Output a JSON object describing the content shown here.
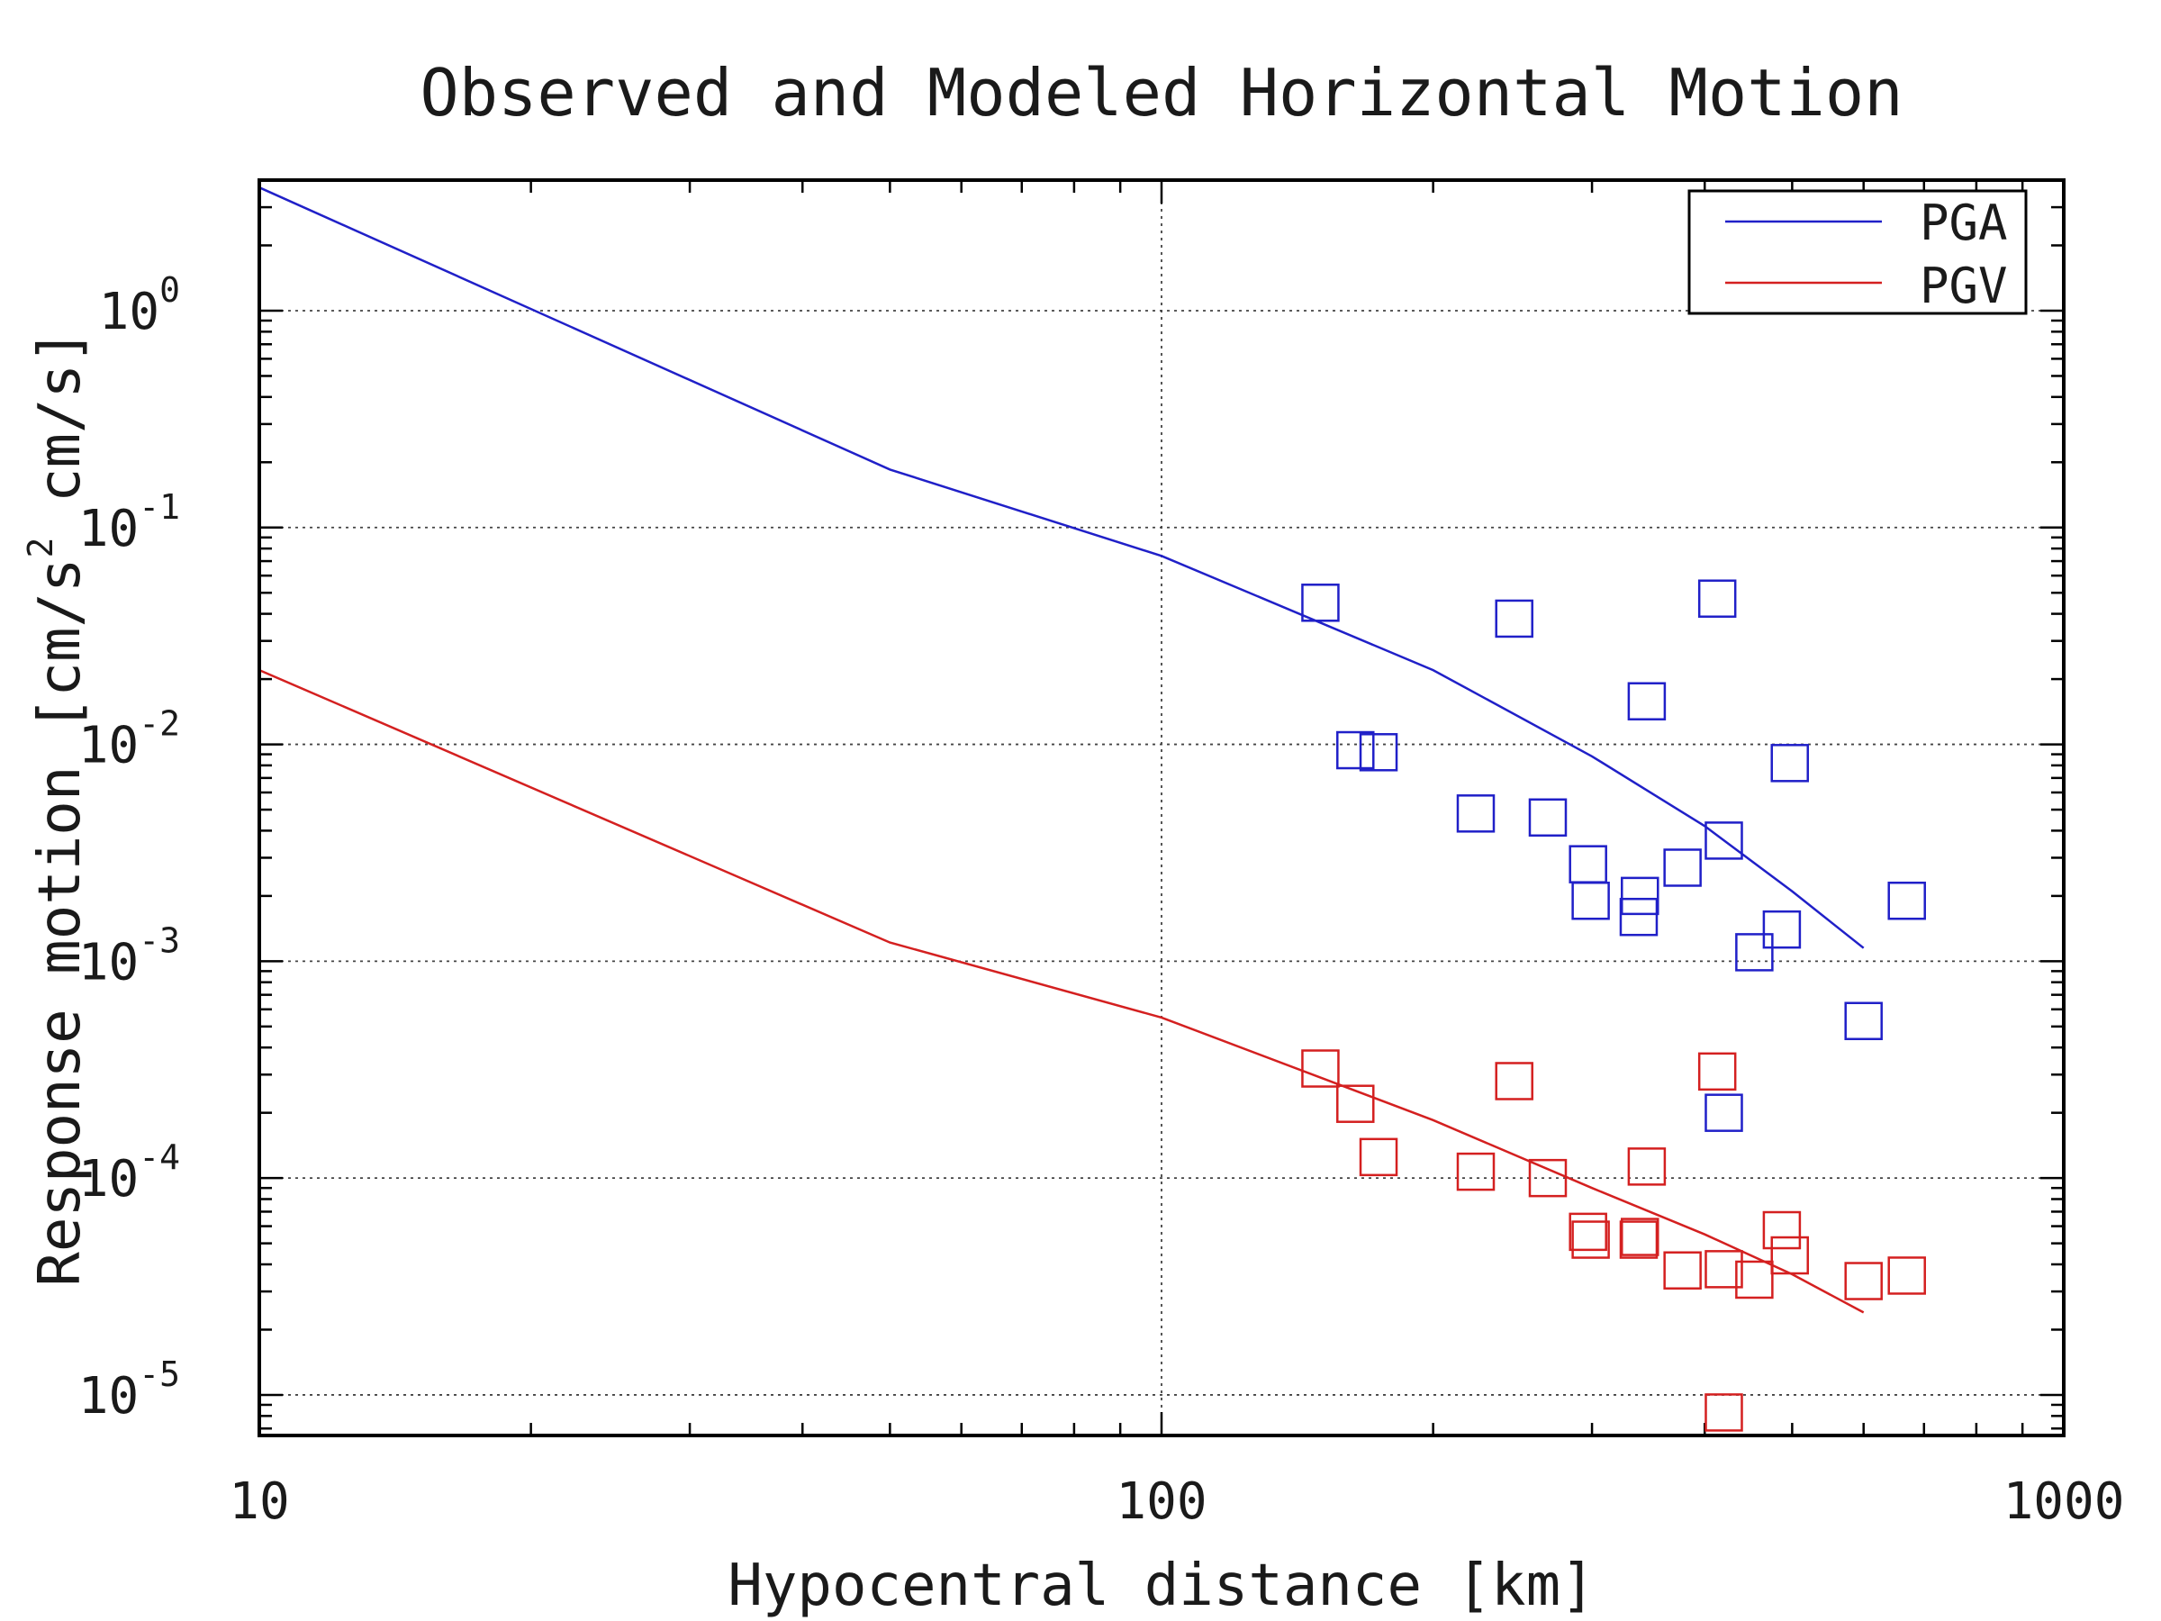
{
  "chart_data": {
    "type": "scatter",
    "title": "Observed and Modeled Horizontal Motion",
    "xlabel": "Hypocentral distance [km]",
    "ylabel_parts": {
      "before": "Response motion [cm/s",
      "sup": "2",
      "after": "  cm/s]"
    },
    "x_scale": "log",
    "y_scale": "log",
    "xlim": [
      10,
      1000
    ],
    "ylim": [
      6.5e-06,
      4
    ],
    "grid": true,
    "legend_position": "top-right",
    "x_ticks": [
      {
        "value": 10,
        "label": "10"
      },
      {
        "value": 100,
        "label": "100"
      },
      {
        "value": 1000,
        "label": "1000"
      }
    ],
    "y_ticks": [
      {
        "value": 1,
        "base": "10",
        "exp": "0"
      },
      {
        "value": 0.1,
        "base": "10",
        "exp": "-1"
      },
      {
        "value": 0.01,
        "base": "10",
        "exp": "-2"
      },
      {
        "value": 0.001,
        "base": "10",
        "exp": "-3"
      },
      {
        "value": 0.0001,
        "base": "10",
        "exp": "-4"
      },
      {
        "value": 1e-05,
        "base": "10",
        "exp": "-5"
      }
    ],
    "series": [
      {
        "name": "PGA",
        "color": "#2020c8",
        "model": [
          {
            "x": 10,
            "y": 3.7
          },
          {
            "x": 50,
            "y": 0.185
          },
          {
            "x": 100,
            "y": 0.074
          },
          {
            "x": 200,
            "y": 0.022
          },
          {
            "x": 300,
            "y": 0.0088
          },
          {
            "x": 400,
            "y": 0.0042
          },
          {
            "x": 500,
            "y": 0.0021
          },
          {
            "x": 600,
            "y": 0.00115
          }
        ],
        "observed": [
          {
            "x": 150,
            "y": 0.045
          },
          {
            "x": 164,
            "y": 0.0094
          },
          {
            "x": 174,
            "y": 0.0092
          },
          {
            "x": 223,
            "y": 0.0048
          },
          {
            "x": 246,
            "y": 0.038
          },
          {
            "x": 268,
            "y": 0.0046
          },
          {
            "x": 297,
            "y": 0.0028
          },
          {
            "x": 299,
            "y": 0.0019
          },
          {
            "x": 339,
            "y": 0.002
          },
          {
            "x": 338,
            "y": 0.0016
          },
          {
            "x": 345,
            "y": 0.0158
          },
          {
            "x": 378,
            "y": 0.0027
          },
          {
            "x": 413,
            "y": 0.047
          },
          {
            "x": 420,
            "y": 0.0036
          },
          {
            "x": 420,
            "y": 0.0002
          },
          {
            "x": 454,
            "y": 0.0011
          },
          {
            "x": 487,
            "y": 0.0014
          },
          {
            "x": 497,
            "y": 0.0082
          },
          {
            "x": 600,
            "y": 0.00053
          },
          {
            "x": 670,
            "y": 0.0019
          }
        ]
      },
      {
        "name": "PGV",
        "color": "#d42020",
        "model": [
          {
            "x": 10,
            "y": 0.022
          },
          {
            "x": 50,
            "y": 0.00122
          },
          {
            "x": 100,
            "y": 0.00055
          },
          {
            "x": 200,
            "y": 0.000185
          },
          {
            "x": 300,
            "y": 9e-05
          },
          {
            "x": 400,
            "y": 5.5e-05
          },
          {
            "x": 500,
            "y": 3.6e-05
          },
          {
            "x": 600,
            "y": 2.4e-05
          }
        ],
        "observed": [
          {
            "x": 150,
            "y": 0.00032
          },
          {
            "x": 164,
            "y": 0.00022
          },
          {
            "x": 174,
            "y": 0.000125
          },
          {
            "x": 223,
            "y": 0.000107
          },
          {
            "x": 246,
            "y": 0.00028
          },
          {
            "x": 268,
            "y": 0.0001
          },
          {
            "x": 297,
            "y": 5.65e-05
          },
          {
            "x": 299,
            "y": 5.2e-05
          },
          {
            "x": 339,
            "y": 5.35e-05
          },
          {
            "x": 338,
            "y": 5.2e-05
          },
          {
            "x": 345,
            "y": 0.000113
          },
          {
            "x": 378,
            "y": 3.75e-05
          },
          {
            "x": 413,
            "y": 0.00031
          },
          {
            "x": 420,
            "y": 3.8e-05
          },
          {
            "x": 420,
            "y": 8.3e-06
          },
          {
            "x": 454,
            "y": 3.4e-05
          },
          {
            "x": 487,
            "y": 5.75e-05
          },
          {
            "x": 497,
            "y": 4.4e-05
          },
          {
            "x": 600,
            "y": 3.35e-05
          },
          {
            "x": 670,
            "y": 3.55e-05
          }
        ]
      }
    ]
  }
}
